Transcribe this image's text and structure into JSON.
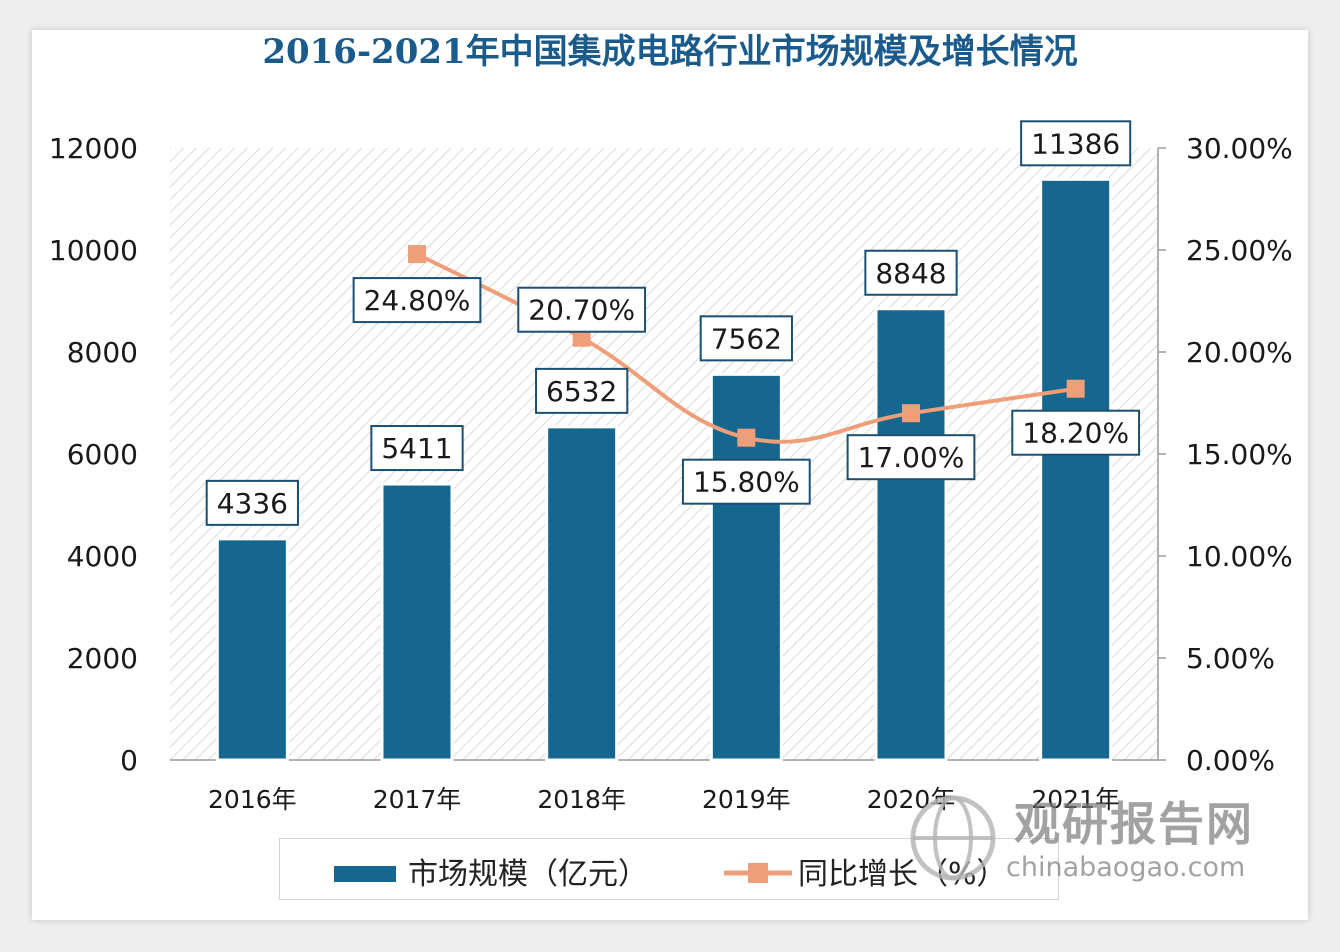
{
  "chart_data": {
    "type": "bar",
    "title": "2016-2021年中国集成电路行业市场规模及增长情况",
    "categories": [
      "2016年",
      "2017年",
      "2018年",
      "2019年",
      "2020年",
      "2021年"
    ],
    "series": [
      {
        "name": "市场规模（亿元）",
        "type": "bar",
        "axis": "left",
        "values": [
          4336,
          5411,
          6532,
          7562,
          8848,
          11386
        ],
        "labels": [
          "4336",
          "5411",
          "6532",
          "7562",
          "8848",
          "11386"
        ],
        "color": "#15678f"
      },
      {
        "name": "同比增长（%）",
        "type": "line",
        "axis": "right",
        "values": [
          null,
          24.8,
          20.7,
          15.8,
          17.0,
          18.2
        ],
        "labels": [
          "",
          "24.80%",
          "20.70%",
          "15.80%",
          "17.00%",
          "18.20%"
        ],
        "color": "#ee9e78"
      }
    ],
    "y_left": {
      "range": [
        0,
        12000
      ],
      "ticks": [
        "0",
        "2000",
        "4000",
        "6000",
        "8000",
        "10000",
        "12000"
      ]
    },
    "y_right": {
      "range": [
        0,
        30
      ],
      "ticks": [
        "0.00%",
        "5.00%",
        "10.00%",
        "15.00%",
        "20.00%",
        "25.00%",
        "30.00%"
      ]
    },
    "grid": false,
    "legend_position": "bottom"
  },
  "watermark": {
    "text": "观研报告网",
    "url": "chinabaogao.com",
    "icon": "globe-logo-icon"
  }
}
